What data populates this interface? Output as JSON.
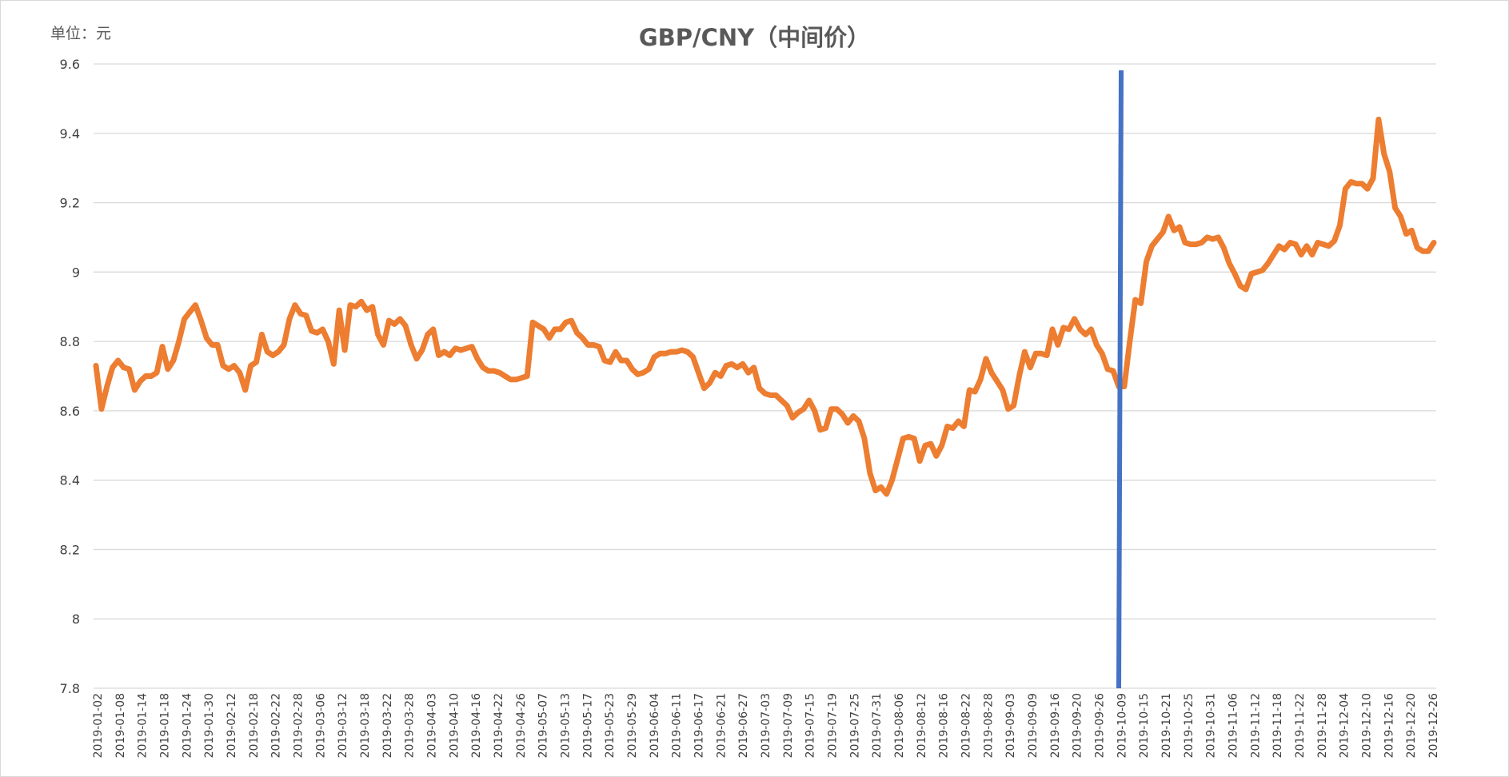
{
  "unit_label": "单位：元",
  "chart_data": {
    "type": "line",
    "title": "GBP/CNY（中间价）",
    "xlabel": "",
    "ylabel": "",
    "ylim": [
      7.8,
      9.6
    ],
    "yticks": [
      "7.8",
      "8",
      "8.2",
      "8.4",
      "8.6",
      "8.8",
      "9",
      "9.2",
      "9.4",
      "9.6"
    ],
    "grid": true,
    "legend": "none",
    "x_tick_labels": [
      "2019-01-02",
      "2019-01-08",
      "2019-01-14",
      "2019-01-18",
      "2019-01-24",
      "2019-01-30",
      "2019-02-12",
      "2019-02-18",
      "2019-02-22",
      "2019-02-28",
      "2019-03-06",
      "2019-03-12",
      "2019-03-18",
      "2019-03-22",
      "2019-03-28",
      "2019-04-03",
      "2019-04-10",
      "2019-04-16",
      "2019-04-22",
      "2019-04-26",
      "2019-05-07",
      "2019-05-13",
      "2019-05-17",
      "2019-05-23",
      "2019-05-29",
      "2019-06-04",
      "2019-06-11",
      "2019-06-17",
      "2019-06-21",
      "2019-06-27",
      "2019-07-03",
      "2019-07-09",
      "2019-07-15",
      "2019-07-19",
      "2019-07-25",
      "2019-07-31",
      "2019-08-06",
      "2019-08-12",
      "2019-08-16",
      "2019-08-22",
      "2019-08-28",
      "2019-09-03",
      "2019-09-09",
      "2019-09-16",
      "2019-09-20",
      "2019-09-26",
      "2019-10-09",
      "2019-10-15",
      "2019-10-21",
      "2019-10-25",
      "2019-10-31",
      "2019-11-06",
      "2019-11-12",
      "2019-11-18",
      "2019-11-22",
      "2019-11-28",
      "2019-12-04",
      "2019-12-10",
      "2019-12-16",
      "2019-12-20",
      "2019-12-26"
    ],
    "series": [
      {
        "color": "#ED7D31",
        "values": [
          8.73,
          8.605,
          8.67,
          8.725,
          8.745,
          8.725,
          8.72,
          8.66,
          8.685,
          8.7,
          8.7,
          8.71,
          8.785,
          8.72,
          8.745,
          8.8,
          8.865,
          8.885,
          8.905,
          8.86,
          8.81,
          8.79,
          8.79,
          8.73,
          8.72,
          8.73,
          8.71,
          8.66,
          8.73,
          8.74,
          8.82,
          8.77,
          8.76,
          8.77,
          8.79,
          8.865,
          8.905,
          8.88,
          8.875,
          8.83,
          8.825,
          8.835,
          8.8,
          8.735,
          8.89,
          8.775,
          8.905,
          8.9,
          8.915,
          8.89,
          8.9,
          8.82,
          8.79,
          8.86,
          8.85,
          8.865,
          8.845,
          8.79,
          8.75,
          8.775,
          8.82,
          8.835,
          8.76,
          8.77,
          8.76,
          8.78,
          8.775,
          8.78,
          8.785,
          8.75,
          8.725,
          8.715,
          8.715,
          8.71,
          8.7,
          8.69,
          8.69,
          8.695,
          8.7,
          8.855,
          8.845,
          8.835,
          8.81,
          8.835,
          8.835,
          8.855,
          8.86,
          8.825,
          8.81,
          8.79,
          8.79,
          8.785,
          8.745,
          8.74,
          8.77,
          8.745,
          8.745,
          8.72,
          8.705,
          8.71,
          8.72,
          8.755,
          8.765,
          8.765,
          8.77,
          8.77,
          8.775,
          8.77,
          8.755,
          8.71,
          8.665,
          8.68,
          8.71,
          8.7,
          8.73,
          8.735,
          8.725,
          8.735,
          8.71,
          8.725,
          8.665,
          8.65,
          8.645,
          8.645,
          8.63,
          8.615,
          8.58,
          8.595,
          8.605,
          8.63,
          8.6,
          8.545,
          8.55,
          8.605,
          8.605,
          8.59,
          8.565,
          8.585,
          8.57,
          8.52,
          8.42,
          8.37,
          8.38,
          8.36,
          8.4,
          8.46,
          8.52,
          8.525,
          8.52,
          8.455,
          8.5,
          8.505,
          8.47,
          8.5,
          8.555,
          8.55,
          8.57,
          8.555,
          8.66,
          8.655,
          8.69,
          8.75,
          8.71,
          8.685,
          8.66,
          8.605,
          8.615,
          8.7,
          8.77,
          8.725,
          8.765,
          8.765,
          8.76,
          8.835,
          8.79,
          8.84,
          8.835,
          8.865,
          8.835,
          8.82,
          8.835,
          8.79,
          8.765,
          8.72,
          8.715,
          8.67,
          8.67,
          8.8,
          8.92,
          8.91,
          9.03,
          9.075,
          9.095,
          9.115,
          9.16,
          9.12,
          9.13,
          9.085,
          9.08,
          9.08,
          9.085,
          9.1,
          9.095,
          9.1,
          9.07,
          9.025,
          8.995,
          8.96,
          8.95,
          8.995,
          9.0,
          9.005,
          9.025,
          9.05,
          9.075,
          9.065,
          9.085,
          9.08,
          9.05,
          9.075,
          9.05,
          9.085,
          9.08,
          9.075,
          9.09,
          9.135,
          9.24,
          9.26,
          9.255,
          9.255,
          9.24,
          9.27,
          9.44,
          9.34,
          9.29,
          9.185,
          9.16,
          9.11,
          9.12,
          9.07,
          9.06,
          9.06,
          9.085
        ]
      }
    ],
    "annotations": [
      {
        "type": "vertical-line",
        "color": "#4472C4",
        "near_date": "2019-10-09"
      }
    ]
  }
}
